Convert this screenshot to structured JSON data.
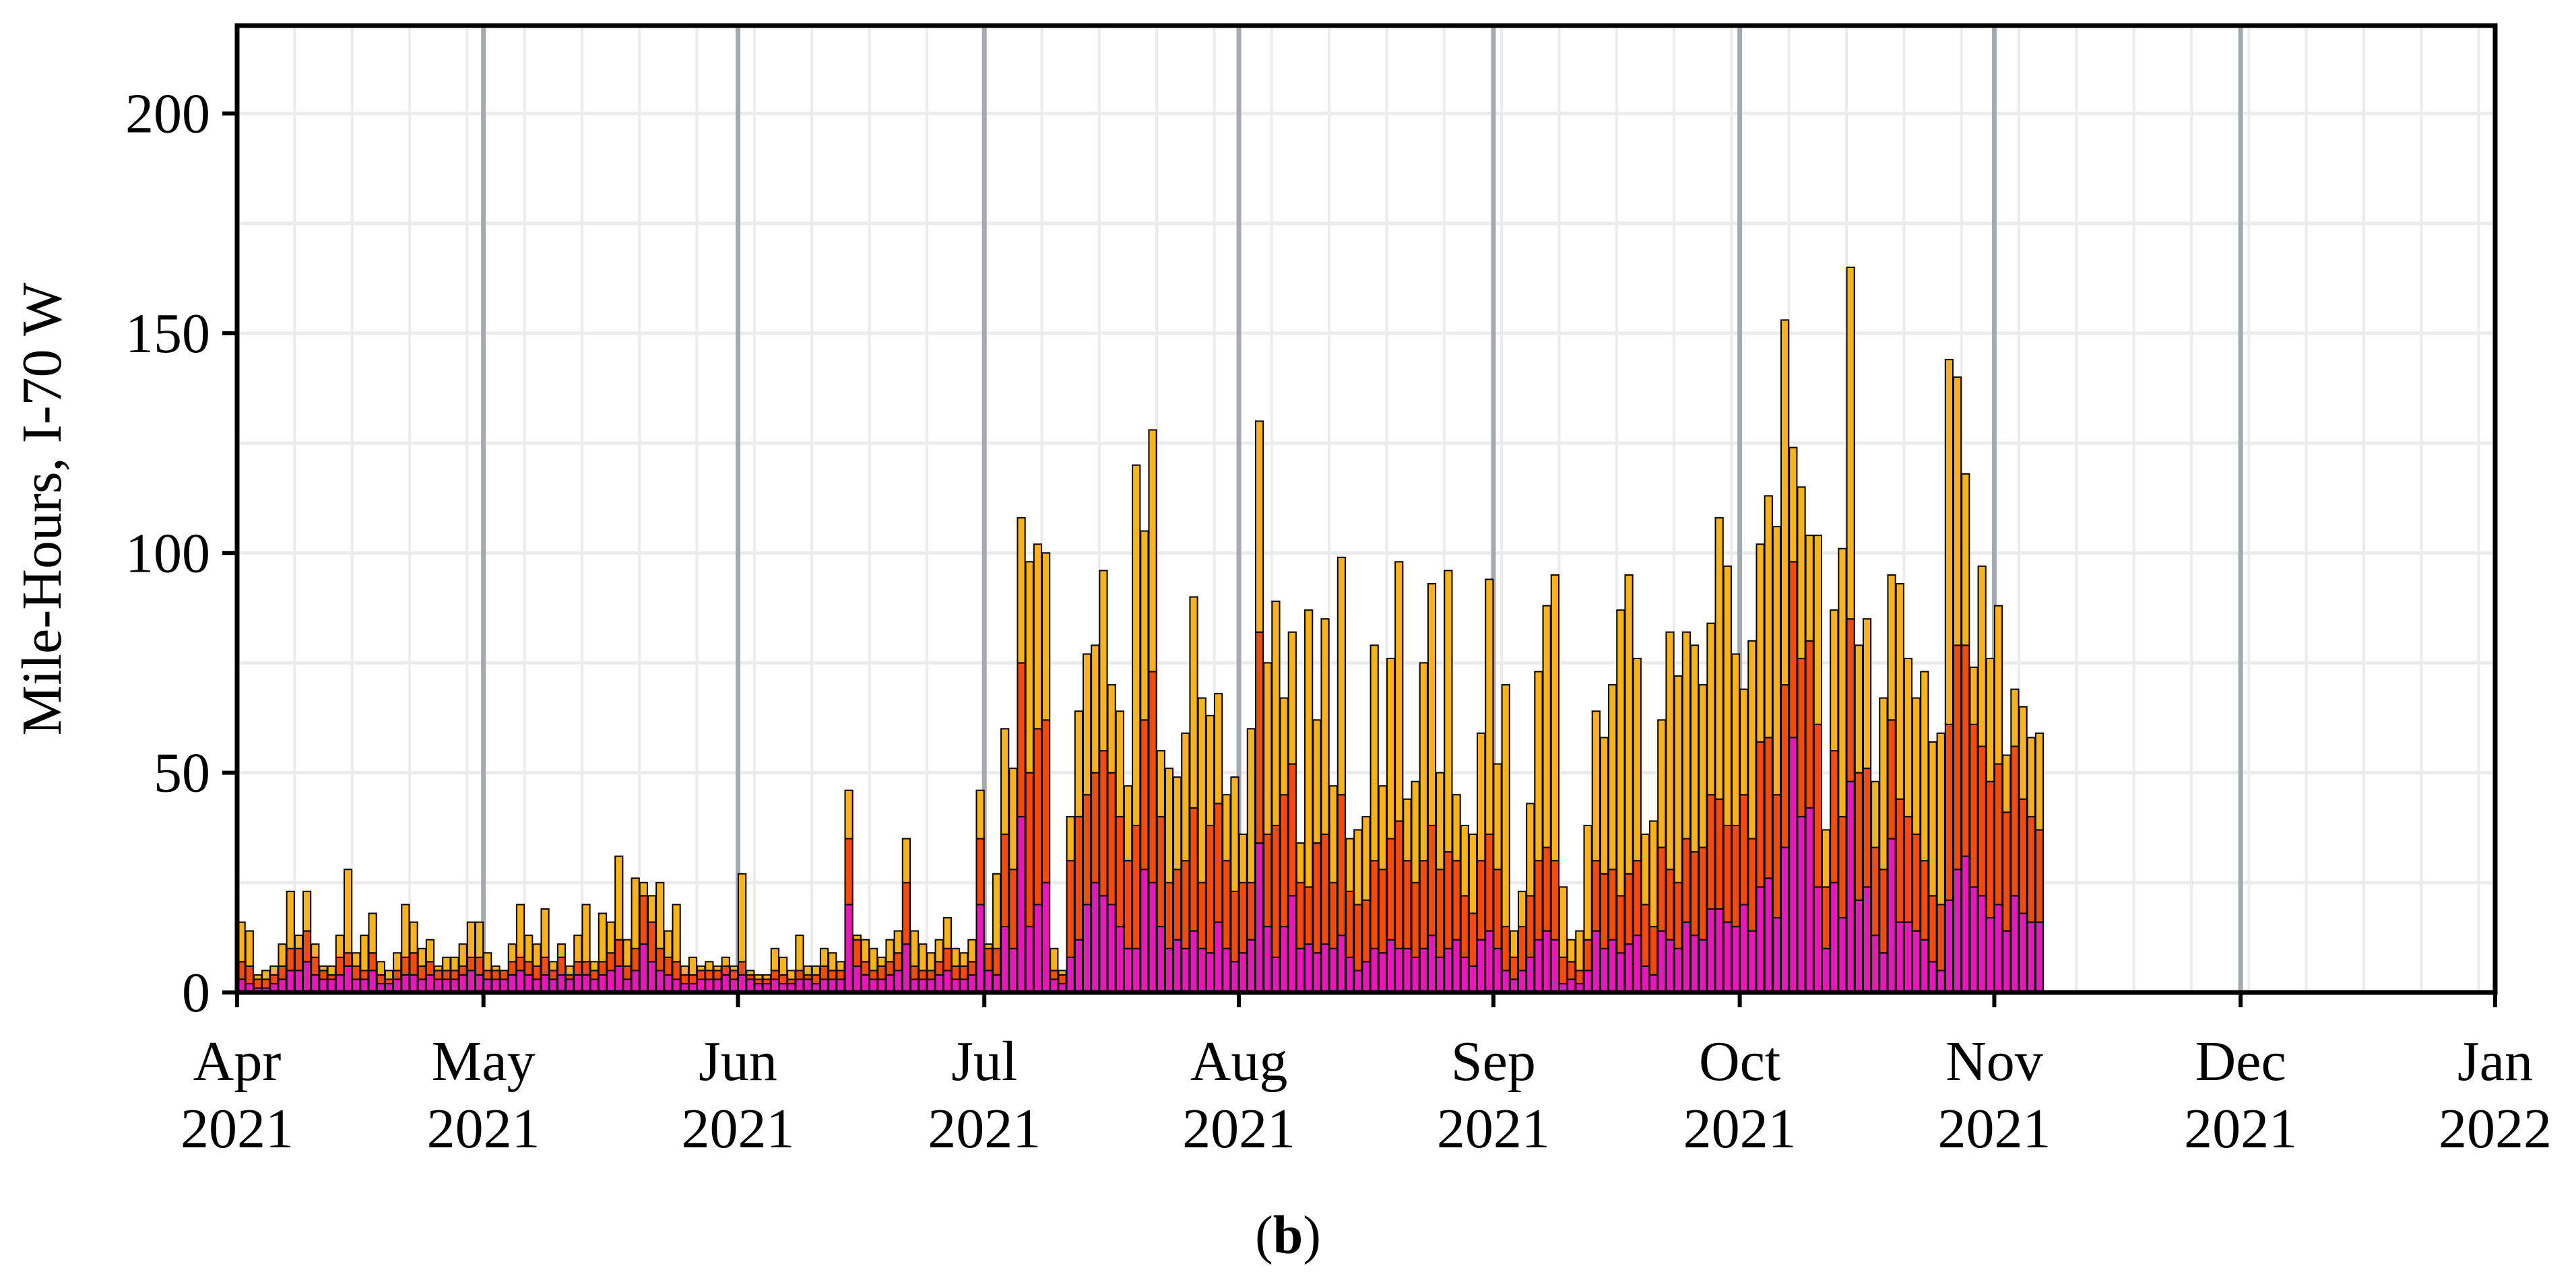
{
  "caption": {
    "label": "b",
    "open": "(",
    "close": ")"
  },
  "colors": {
    "bottom": "#e619b8",
    "middle": "#f24b0c",
    "top": "#f8b31b",
    "month_line": "#a5aab0",
    "grid": "#ececec",
    "frame": "#000000"
  },
  "chart_data": {
    "type": "bar",
    "stacked": true,
    "ylabel": "Mile-Hours, I-70 W",
    "xlabel": "",
    "title": "",
    "ylim": [
      0,
      220
    ],
    "yticks": [
      0,
      50,
      100,
      150,
      200
    ],
    "x_start": "2021-04-01",
    "x_end": "2022-01-01",
    "grid": true,
    "xticks": [
      {
        "date": "2021-04-01",
        "month": "Apr",
        "year": "2021"
      },
      {
        "date": "2021-05-01",
        "month": "May",
        "year": "2021"
      },
      {
        "date": "2021-06-01",
        "month": "Jun",
        "year": "2021"
      },
      {
        "date": "2021-07-01",
        "month": "Jul",
        "year": "2021"
      },
      {
        "date": "2021-08-01",
        "month": "Aug",
        "year": "2021"
      },
      {
        "date": "2021-09-01",
        "month": "Sep",
        "year": "2021"
      },
      {
        "date": "2021-10-01",
        "month": "Oct",
        "year": "2021"
      },
      {
        "date": "2021-11-01",
        "month": "Nov",
        "year": "2021"
      },
      {
        "date": "2021-12-01",
        "month": "Dec",
        "year": "2021"
      },
      {
        "date": "2022-01-01",
        "month": "Jan",
        "year": "2022"
      }
    ],
    "day_index_note": "",
    "bars": [
      [
        0,
        3,
        7,
        16
      ],
      [
        1,
        2,
        6,
        14
      ],
      [
        2,
        1,
        3,
        4
      ],
      [
        3,
        1,
        3,
        5
      ],
      [
        4,
        2,
        4,
        6
      ],
      [
        5,
        3,
        6,
        11
      ],
      [
        6,
        5,
        10,
        23
      ],
      [
        7,
        5,
        10,
        13
      ],
      [
        8,
        7,
        14,
        23
      ],
      [
        9,
        4,
        8,
        11
      ],
      [
        10,
        3,
        5,
        6
      ],
      [
        11,
        3,
        4,
        6
      ],
      [
        12,
        4,
        8,
        13
      ],
      [
        13,
        6,
        9,
        28
      ],
      [
        14,
        3,
        6,
        9
      ],
      [
        15,
        3,
        5,
        13
      ],
      [
        16,
        5,
        9,
        18
      ],
      [
        17,
        2,
        4,
        7
      ],
      [
        18,
        2,
        3,
        5
      ],
      [
        19,
        3,
        5,
        9
      ],
      [
        20,
        4,
        8,
        20
      ],
      [
        21,
        4,
        9,
        16
      ],
      [
        22,
        3,
        6,
        10
      ],
      [
        23,
        4,
        7,
        12
      ],
      [
        24,
        3,
        5,
        6
      ],
      [
        25,
        3,
        5,
        8
      ],
      [
        26,
        3,
        5,
        8
      ],
      [
        27,
        4,
        6,
        11
      ],
      [
        28,
        5,
        8,
        16
      ],
      [
        29,
        4,
        8,
        16
      ],
      [
        30,
        3,
        5,
        9
      ],
      [
        31,
        3,
        5,
        6
      ],
      [
        32,
        3,
        5,
        5
      ],
      [
        33,
        4,
        7,
        11
      ],
      [
        34,
        5,
        8,
        20
      ],
      [
        35,
        4,
        7,
        13
      ],
      [
        36,
        3,
        6,
        11
      ],
      [
        37,
        4,
        8,
        19
      ],
      [
        38,
        3,
        5,
        7
      ],
      [
        39,
        4,
        8,
        11
      ],
      [
        40,
        3,
        4,
        6
      ],
      [
        41,
        4,
        7,
        13
      ],
      [
        42,
        4,
        7,
        20
      ],
      [
        43,
        3,
        5,
        7
      ],
      [
        44,
        4,
        7,
        18
      ],
      [
        45,
        5,
        9,
        16
      ],
      [
        46,
        6,
        12,
        31
      ],
      [
        47,
        3,
        6,
        12
      ],
      [
        48,
        5,
        10,
        26
      ],
      [
        49,
        11,
        22,
        25
      ],
      [
        50,
        7,
        16,
        22
      ],
      [
        51,
        5,
        10,
        25
      ],
      [
        52,
        4,
        8,
        14
      ],
      [
        53,
        3,
        7,
        20
      ],
      [
        54,
        2,
        4,
        6
      ],
      [
        55,
        2,
        4,
        8
      ],
      [
        56,
        3,
        5,
        6
      ],
      [
        57,
        3,
        5,
        7
      ],
      [
        58,
        3,
        5,
        6
      ],
      [
        59,
        4,
        6,
        8
      ],
      [
        60,
        3,
        5,
        6
      ],
      [
        61,
        4,
        7,
        27
      ],
      [
        62,
        3,
        4,
        5
      ],
      [
        63,
        2,
        3,
        4
      ],
      [
        64,
        2,
        3,
        4
      ],
      [
        65,
        3,
        5,
        10
      ],
      [
        66,
        2,
        4,
        8
      ],
      [
        67,
        2,
        3,
        5
      ],
      [
        68,
        3,
        5,
        13
      ],
      [
        69,
        3,
        4,
        6
      ],
      [
        70,
        2,
        4,
        6
      ],
      [
        71,
        3,
        6,
        10
      ],
      [
        72,
        3,
        5,
        9
      ],
      [
        73,
        3,
        5,
        7
      ],
      [
        74,
        20,
        35,
        46
      ],
      [
        75,
        6,
        12,
        13
      ],
      [
        76,
        4,
        7,
        12
      ],
      [
        77,
        3,
        5,
        10
      ],
      [
        78,
        3,
        6,
        8
      ],
      [
        79,
        4,
        7,
        12
      ],
      [
        80,
        5,
        9,
        14
      ],
      [
        81,
        11,
        25,
        35
      ],
      [
        82,
        3,
        6,
        14
      ],
      [
        83,
        3,
        5,
        11
      ],
      [
        84,
        3,
        5,
        9
      ],
      [
        85,
        4,
        7,
        12
      ],
      [
        86,
        5,
        10,
        17
      ],
      [
        87,
        3,
        6,
        10
      ],
      [
        88,
        3,
        6,
        9
      ],
      [
        89,
        4,
        7,
        12
      ],
      [
        90,
        20,
        35,
        46
      ],
      [
        91,
        5,
        10,
        11
      ],
      [
        92,
        4,
        10,
        27
      ],
      [
        93,
        15,
        36,
        60
      ],
      [
        94,
        10,
        28,
        51
      ],
      [
        95,
        40,
        75,
        108
      ],
      [
        96,
        15,
        50,
        98
      ],
      [
        97,
        20,
        60,
        102
      ],
      [
        98,
        25,
        62,
        100
      ],
      [
        99,
        3,
        5,
        10
      ],
      [
        100,
        2,
        4,
        5
      ],
      [
        101,
        8,
        30,
        40
      ],
      [
        102,
        12,
        40,
        64
      ],
      [
        103,
        20,
        45,
        77
      ],
      [
        104,
        25,
        50,
        79
      ],
      [
        105,
        22,
        55,
        96
      ],
      [
        106,
        20,
        50,
        70
      ],
      [
        107,
        15,
        40,
        64
      ],
      [
        108,
        10,
        30,
        47
      ],
      [
        109,
        10,
        38,
        120
      ],
      [
        110,
        28,
        62,
        105
      ],
      [
        111,
        25,
        73,
        128
      ],
      [
        112,
        15,
        40,
        55
      ],
      [
        113,
        10,
        25,
        51
      ],
      [
        114,
        12,
        28,
        49
      ],
      [
        115,
        10,
        30,
        59
      ],
      [
        116,
        14,
        42,
        90
      ],
      [
        117,
        10,
        25,
        67
      ],
      [
        118,
        9,
        38,
        63
      ],
      [
        119,
        16,
        43,
        68
      ],
      [
        120,
        10,
        30,
        45
      ],
      [
        121,
        7,
        23,
        49
      ],
      [
        122,
        9,
        25,
        36
      ],
      [
        123,
        12,
        25,
        60
      ],
      [
        124,
        34,
        82,
        130
      ],
      [
        125,
        15,
        36,
        75
      ],
      [
        126,
        8,
        38,
        89
      ],
      [
        127,
        15,
        45,
        67
      ],
      [
        128,
        22,
        52,
        82
      ],
      [
        129,
        10,
        25,
        34
      ],
      [
        130,
        11,
        24,
        87
      ],
      [
        131,
        9,
        34,
        62
      ],
      [
        132,
        11,
        36,
        85
      ],
      [
        133,
        10,
        25,
        47
      ],
      [
        134,
        13,
        45,
        99
      ],
      [
        135,
        8,
        23,
        35
      ],
      [
        136,
        5,
        20,
        37
      ],
      [
        137,
        7,
        21,
        40
      ],
      [
        138,
        10,
        30,
        79
      ],
      [
        139,
        9,
        28,
        47
      ],
      [
        140,
        12,
        35,
        76
      ],
      [
        141,
        10,
        39,
        98
      ],
      [
        142,
        10,
        30,
        44
      ],
      [
        143,
        8,
        25,
        48
      ],
      [
        144,
        10,
        30,
        75
      ],
      [
        145,
        13,
        38,
        93
      ],
      [
        146,
        8,
        28,
        50
      ],
      [
        147,
        10,
        32,
        96
      ],
      [
        148,
        12,
        30,
        45
      ],
      [
        149,
        8,
        22,
        38
      ],
      [
        150,
        6,
        18,
        36
      ],
      [
        151,
        12,
        30,
        59
      ],
      [
        152,
        14,
        36,
        94
      ],
      [
        153,
        10,
        28,
        52
      ],
      [
        154,
        5,
        15,
        70
      ],
      [
        155,
        3,
        8,
        14
      ],
      [
        156,
        5,
        15,
        23
      ],
      [
        157,
        8,
        22,
        43
      ],
      [
        158,
        12,
        30,
        73
      ],
      [
        159,
        14,
        33,
        88
      ],
      [
        160,
        12,
        30,
        95
      ],
      [
        161,
        2,
        8,
        24
      ],
      [
        162,
        3,
        7,
        12
      ],
      [
        163,
        2,
        5,
        14
      ],
      [
        164,
        5,
        12,
        38
      ],
      [
        165,
        14,
        30,
        64
      ],
      [
        166,
        10,
        27,
        58
      ],
      [
        167,
        12,
        28,
        70
      ],
      [
        168,
        9,
        22,
        87
      ],
      [
        169,
        11,
        27,
        95
      ],
      [
        170,
        13,
        30,
        76
      ],
      [
        171,
        6,
        20,
        36
      ],
      [
        172,
        4,
        15,
        39
      ],
      [
        173,
        14,
        33,
        62
      ],
      [
        174,
        12,
        28,
        82
      ],
      [
        175,
        10,
        25,
        72
      ],
      [
        176,
        16,
        35,
        82
      ],
      [
        177,
        13,
        32,
        79
      ],
      [
        178,
        12,
        33,
        70
      ],
      [
        179,
        19,
        45,
        84
      ],
      [
        180,
        19,
        44,
        108
      ],
      [
        181,
        16,
        38,
        97
      ],
      [
        182,
        15,
        38,
        77
      ],
      [
        183,
        20,
        45,
        69
      ],
      [
        184,
        14,
        35,
        80
      ],
      [
        185,
        24,
        57,
        102
      ],
      [
        186,
        26,
        58,
        113
      ],
      [
        187,
        17,
        45,
        106
      ],
      [
        188,
        33,
        70,
        153
      ],
      [
        189,
        58,
        98,
        124
      ],
      [
        190,
        40,
        76,
        115
      ],
      [
        191,
        42,
        80,
        104
      ],
      [
        192,
        24,
        61,
        104
      ],
      [
        193,
        10,
        24,
        37
      ],
      [
        194,
        25,
        55,
        87
      ],
      [
        195,
        17,
        40,
        101
      ],
      [
        196,
        48,
        85,
        165
      ],
      [
        197,
        21,
        50,
        79
      ],
      [
        198,
        24,
        51,
        85
      ],
      [
        199,
        13,
        33,
        48
      ],
      [
        200,
        9,
        28,
        67
      ],
      [
        201,
        35,
        62,
        95
      ],
      [
        202,
        16,
        44,
        93
      ],
      [
        203,
        16,
        40,
        76
      ],
      [
        204,
        14,
        36,
        67
      ],
      [
        205,
        12,
        30,
        73
      ],
      [
        206,
        7,
        22,
        57
      ],
      [
        207,
        5,
        20,
        59
      ],
      [
        208,
        21,
        61,
        144
      ],
      [
        209,
        28,
        79,
        140
      ],
      [
        210,
        31,
        79,
        118
      ],
      [
        211,
        24,
        61,
        74
      ],
      [
        212,
        22,
        56,
        97
      ],
      [
        213,
        17,
        48,
        76
      ],
      [
        214,
        20,
        52,
        88
      ],
      [
        215,
        14,
        41,
        54
      ],
      [
        216,
        22,
        56,
        69
      ],
      [
        217,
        18,
        44,
        65
      ],
      [
        218,
        16,
        40,
        58
      ],
      [
        219,
        16,
        37,
        59
      ]
    ]
  }
}
